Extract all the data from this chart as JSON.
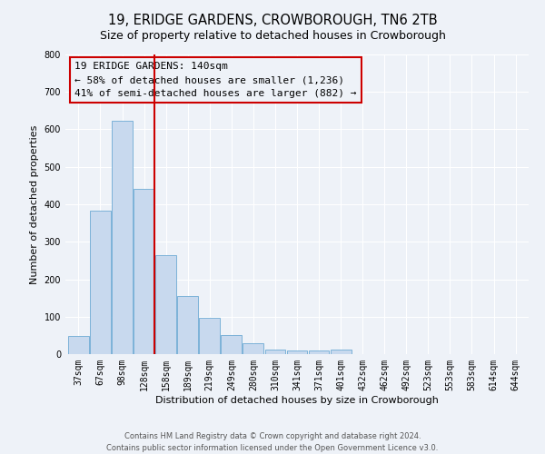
{
  "title": "19, ERIDGE GARDENS, CROWBOROUGH, TN6 2TB",
  "subtitle": "Size of property relative to detached houses in Crowborough",
  "xlabel": "Distribution of detached houses by size in Crowborough",
  "ylabel": "Number of detached properties",
  "bar_labels": [
    "37sqm",
    "67sqm",
    "98sqm",
    "128sqm",
    "158sqm",
    "189sqm",
    "219sqm",
    "249sqm",
    "280sqm",
    "310sqm",
    "341sqm",
    "371sqm",
    "401sqm",
    "432sqm",
    "462sqm",
    "492sqm",
    "523sqm",
    "553sqm",
    "583sqm",
    "614sqm",
    "644sqm"
  ],
  "bar_heights": [
    48,
    383,
    622,
    440,
    265,
    155,
    97,
    52,
    30,
    12,
    10,
    10,
    12,
    0,
    0,
    0,
    0,
    0,
    0,
    0,
    0
  ],
  "bar_color": "#c8d9ee",
  "bar_edge_color": "#6daad4",
  "vline_color": "#cc0000",
  "vline_pos": 3.47,
  "ylim": [
    0,
    800
  ],
  "yticks": [
    0,
    100,
    200,
    300,
    400,
    500,
    600,
    700,
    800
  ],
  "annotation_line1": "19 ERIDGE GARDENS: 140sqm",
  "annotation_line2": "← 58% of detached houses are smaller (1,236)",
  "annotation_line3": "41% of semi-detached houses are larger (882) →",
  "box_edge_color": "#cc0000",
  "footer_line1": "Contains HM Land Registry data © Crown copyright and database right 2024.",
  "footer_line2": "Contains public sector information licensed under the Open Government Licence v3.0.",
  "bg_color": "#eef2f8",
  "grid_color": "#ffffff",
  "title_fontsize": 10.5,
  "subtitle_fontsize": 9,
  "ylabel_fontsize": 8,
  "xlabel_fontsize": 8,
  "tick_fontsize": 7,
  "annotation_fontsize": 8,
  "footer_fontsize": 6
}
